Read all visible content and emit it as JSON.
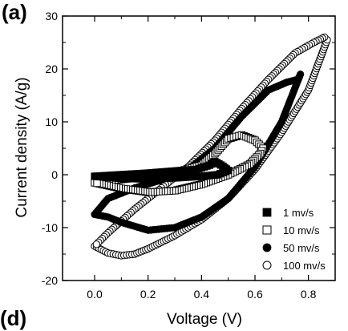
{
  "panel_labels": {
    "top": "(a)",
    "bottom": "(d)"
  },
  "chart_data": {
    "type": "line",
    "title": "",
    "xlabel": "Voltage (V)",
    "ylabel": "Current density (A/g)",
    "xlim": [
      -0.12,
      0.9
    ],
    "ylim": [
      -20,
      30
    ],
    "xticks": [
      0.0,
      0.2,
      0.4,
      0.6,
      0.8
    ],
    "xtick_labels": [
      "0.0",
      "0.2",
      "0.4",
      "0.6",
      "0.8"
    ],
    "yticks": [
      -20,
      -10,
      0,
      10,
      20,
      30
    ],
    "ytick_labels": [
      "-20",
      "-10",
      "0",
      "10",
      "20",
      "30"
    ],
    "grid": false,
    "legend_position": "bottom-right",
    "series": [
      {
        "name": "1 mv/s",
        "marker": "filled-square",
        "color": "#000000",
        "x": [
          0.0,
          0.1,
          0.2,
          0.3,
          0.38,
          0.43,
          0.45,
          0.48,
          0.5,
          0.46,
          0.4,
          0.3,
          0.2,
          0.1,
          0.0
        ],
        "y": [
          -0.3,
          0.0,
          0.3,
          0.7,
          1.0,
          1.8,
          2.5,
          1.6,
          0.8,
          0.0,
          -0.3,
          -0.6,
          -0.8,
          -0.7,
          -0.3
        ]
      },
      {
        "name": "10 mv/s",
        "marker": "open-square",
        "color": "#000000",
        "x": [
          0.0,
          0.1,
          0.2,
          0.3,
          0.4,
          0.45,
          0.5,
          0.55,
          0.6,
          0.63,
          0.62,
          0.58,
          0.5,
          0.4,
          0.3,
          0.2,
          0.1,
          0.0
        ],
        "y": [
          -1.5,
          -0.9,
          -0.3,
          0.4,
          1.8,
          4.0,
          6.8,
          7.5,
          6.5,
          5.0,
          4.0,
          2.0,
          0.0,
          -1.8,
          -3.0,
          -3.3,
          -2.6,
          -1.5
        ]
      },
      {
        "name": "50 mv/s",
        "marker": "filled-circle",
        "color": "#000000",
        "x": [
          0.0,
          0.05,
          0.1,
          0.2,
          0.3,
          0.4,
          0.5,
          0.6,
          0.7,
          0.77,
          0.76,
          0.72,
          0.65,
          0.55,
          0.45,
          0.35,
          0.25,
          0.15,
          0.05,
          0.0
        ],
        "y": [
          -7.5,
          -8.0,
          -9.0,
          -10.5,
          -10.0,
          -8.0,
          -4.5,
          1.5,
          10.0,
          19.0,
          18.0,
          17.5,
          16.0,
          11.0,
          5.0,
          1.0,
          -1.0,
          -2.5,
          -4.5,
          -7.5
        ]
      },
      {
        "name": "100 mv/s",
        "marker": "open-circle",
        "color": "#000000",
        "x": [
          0.0,
          0.05,
          0.1,
          0.15,
          0.2,
          0.3,
          0.4,
          0.5,
          0.6,
          0.7,
          0.8,
          0.87,
          0.86,
          0.82,
          0.75,
          0.65,
          0.55,
          0.45,
          0.35,
          0.25,
          0.15,
          0.05,
          0.0
        ],
        "y": [
          -13.5,
          -14.8,
          -15.3,
          -15.0,
          -14.0,
          -11.5,
          -8.5,
          -4.5,
          1.0,
          8.0,
          16.0,
          25.5,
          26.0,
          25.0,
          23.0,
          18.0,
          12.5,
          6.5,
          1.5,
          -2.5,
          -6.5,
          -11.0,
          -13.5
        ]
      }
    ]
  }
}
